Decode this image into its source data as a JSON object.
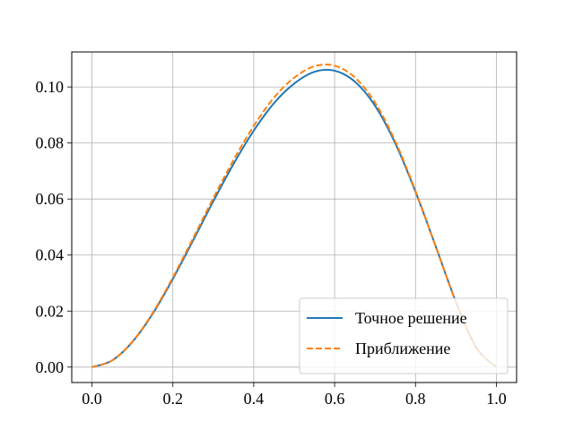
{
  "chart_data": {
    "type": "line",
    "title": "",
    "xlabel": "",
    "ylabel": "",
    "xlim": [
      -0.05,
      1.05
    ],
    "ylim": [
      -0.0055,
      0.1125
    ],
    "grid": true,
    "legend_position": "lower-right",
    "x_ticks": [
      {
        "value": 0.0,
        "label": "0.0"
      },
      {
        "value": 0.2,
        "label": "0.2"
      },
      {
        "value": 0.4,
        "label": "0.4"
      },
      {
        "value": 0.6,
        "label": "0.6"
      },
      {
        "value": 0.8,
        "label": "0.8"
      },
      {
        "value": 1.0,
        "label": "1.0"
      }
    ],
    "y_ticks": [
      {
        "value": 0.0,
        "label": "0.00"
      },
      {
        "value": 0.02,
        "label": "0.02"
      },
      {
        "value": 0.04,
        "label": "0.04"
      },
      {
        "value": 0.06,
        "label": "0.06"
      },
      {
        "value": 0.08,
        "label": "0.08"
      },
      {
        "value": 0.1,
        "label": "0.10"
      }
    ],
    "x": [
      0.0,
      0.05,
      0.1,
      0.15,
      0.2,
      0.25,
      0.3,
      0.35,
      0.4,
      0.45,
      0.5,
      0.55,
      0.6,
      0.65,
      0.7,
      0.75,
      0.8,
      0.85,
      0.9,
      0.95,
      1.0
    ],
    "series": [
      {
        "name": "Точное решение",
        "color": "#1f77b4",
        "style": "solid",
        "values": [
          0.0,
          0.0024,
          0.009,
          0.019,
          0.0315,
          0.0452,
          0.0592,
          0.0725,
          0.0844,
          0.0942,
          0.1012,
          0.1054,
          0.1058,
          0.1019,
          0.0933,
          0.0799,
          0.0626,
          0.0431,
          0.0233,
          0.0071,
          0.0
        ]
      },
      {
        "name": "Приближение",
        "color": "#ff7f0e",
        "style": "dashed",
        "values": [
          0.0,
          0.0024,
          0.0091,
          0.0193,
          0.032,
          0.046,
          0.0603,
          0.0739,
          0.0861,
          0.0962,
          0.1033,
          0.1074,
          0.1076,
          0.1034,
          0.0944,
          0.0806,
          0.0629,
          0.0431,
          0.0232,
          0.007,
          0.0
        ]
      }
    ]
  }
}
